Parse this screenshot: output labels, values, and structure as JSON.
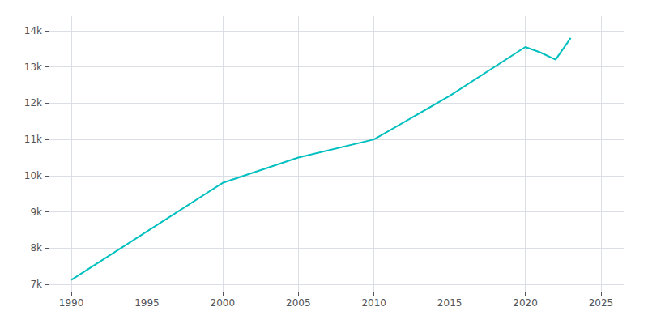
{
  "chart_data": {
    "type": "line",
    "x": [
      1990,
      2000,
      2005,
      2010,
      2015,
      2020,
      2021,
      2022,
      2023
    ],
    "values": [
      7120,
      9800,
      10500,
      11000,
      12200,
      13550,
      13400,
      13200,
      13800
    ],
    "color": "#00BFBF",
    "xlim": [
      1988.5,
      2026.5
    ],
    "xticks": [
      1990,
      1995,
      2000,
      2005,
      2010,
      2015,
      2020,
      2025
    ],
    "ylim": [
      6800,
      14400
    ],
    "yticks": [
      {
        "value": 7000,
        "label": "7k"
      },
      {
        "value": 8000,
        "label": "8k"
      },
      {
        "value": 9000,
        "label": "9k"
      },
      {
        "value": 10000,
        "label": "10k"
      },
      {
        "value": 11000,
        "label": "11k"
      },
      {
        "value": 12000,
        "label": "12k"
      },
      {
        "value": 13000,
        "label": "13k"
      },
      {
        "value": 14000,
        "label": "14k"
      }
    ],
    "grid": true
  }
}
